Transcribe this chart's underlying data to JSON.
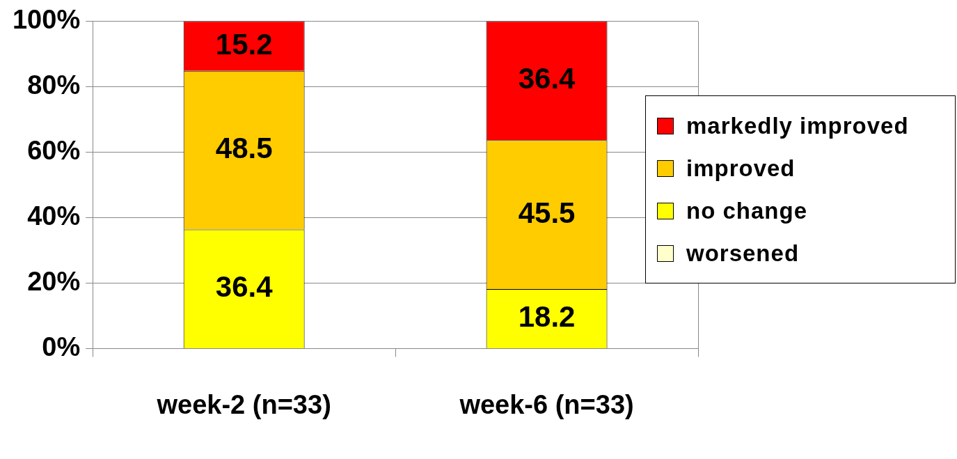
{
  "chart_data": {
    "type": "bar",
    "stacked": true,
    "categories": [
      "week-2 (n=33)",
      "week-6 (n=33)"
    ],
    "series": [
      {
        "name": "worsened",
        "color": "#ffffcc",
        "values": [
          0,
          0
        ],
        "value_labels": [
          null,
          null
        ]
      },
      {
        "name": "no change",
        "color": "#ffff00",
        "values": [
          36.4,
          18.2
        ],
        "value_labels": [
          "36.4",
          "18.2"
        ]
      },
      {
        "name": "improved",
        "color": "#ffcc00",
        "values": [
          48.5,
          45.5
        ],
        "value_labels": [
          "48.5",
          "45.5"
        ]
      },
      {
        "name": "markedly improved",
        "color": "#ff0000",
        "values": [
          15.2,
          36.4
        ],
        "value_labels": [
          "15.2",
          "36.4"
        ]
      }
    ],
    "ylim": [
      0,
      100
    ],
    "yticks": [
      {
        "value": 0,
        "label": "0%"
      },
      {
        "value": 20,
        "label": "20%"
      },
      {
        "value": 40,
        "label": "40%"
      },
      {
        "value": 60,
        "label": "60%"
      },
      {
        "value": 80,
        "label": "80%"
      },
      {
        "value": 100,
        "label": "100%"
      }
    ],
    "grid": "y",
    "legend": "right"
  }
}
